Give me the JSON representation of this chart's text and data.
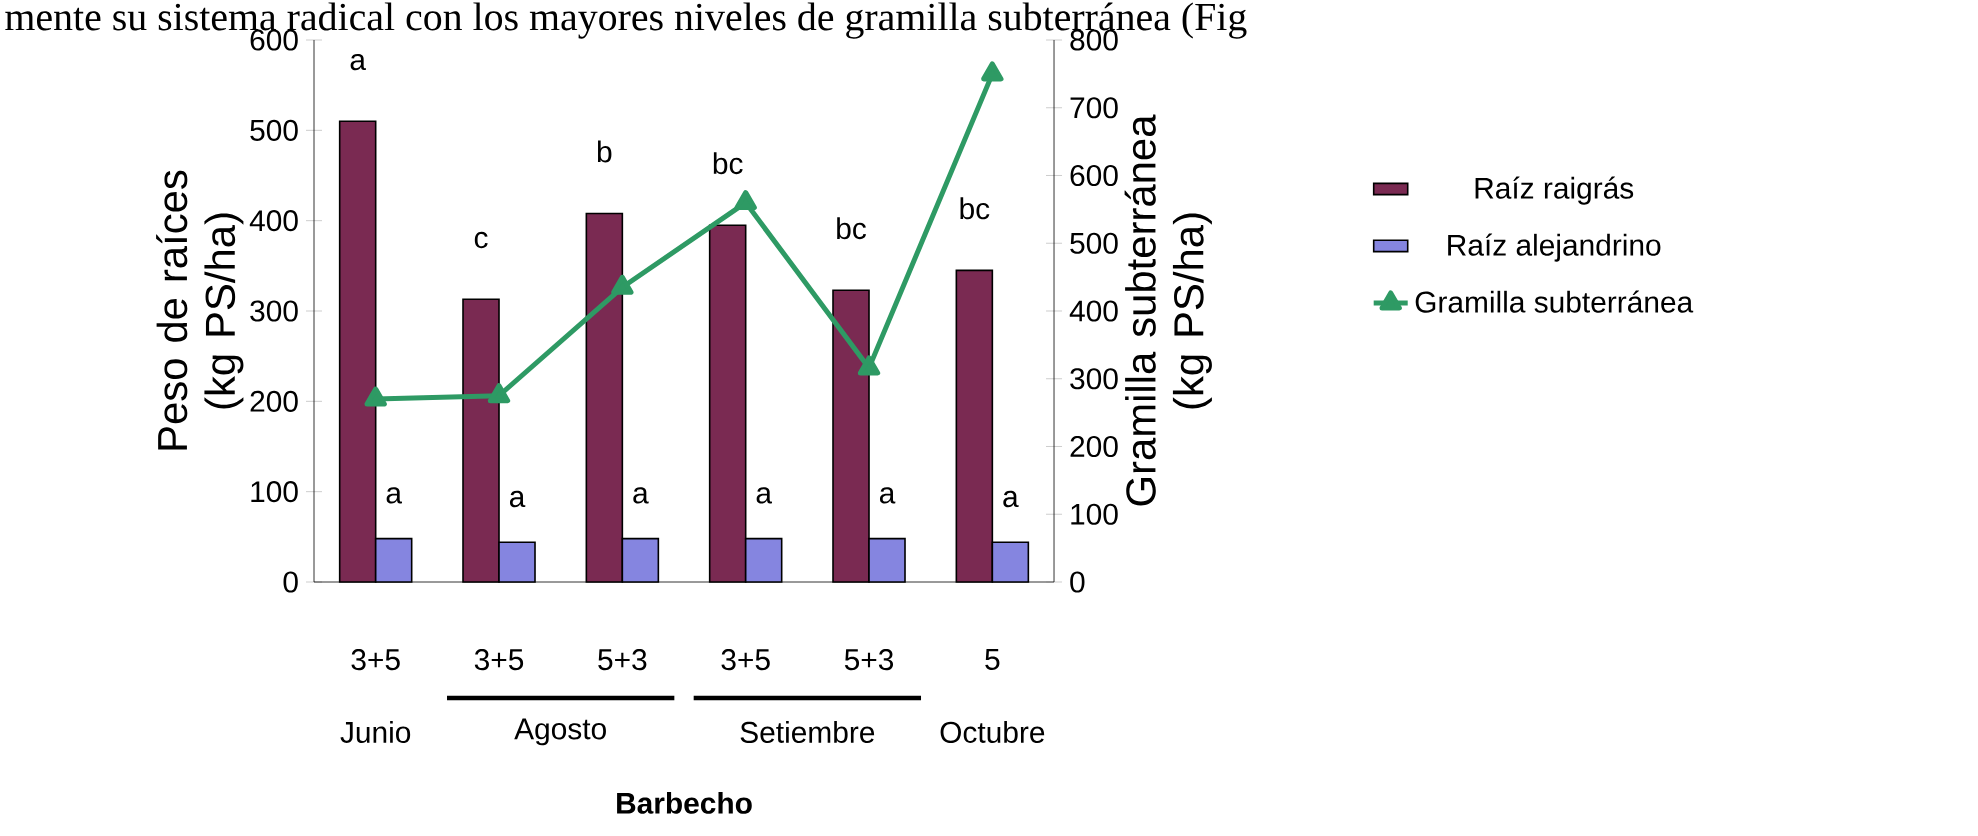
{
  "chart_data": {
    "type": "bar",
    "xlabel": "Barbecho",
    "ylabel": "Peso de raíces (kg PS/ha)",
    "y2label": "Gramilla subterránea (kg PS/ha)",
    "categories": [
      "3+5",
      "3+5",
      "5+3",
      "3+5",
      "5+3",
      "5"
    ],
    "series": [
      {
        "name": "Raíz raigrás",
        "color": "#7a2a52",
        "values": [
          510,
          313,
          408,
          395,
          323,
          345
        ],
        "value_labels": [
          "a",
          "c",
          "b",
          "bc",
          "bc",
          "bc"
        ]
      },
      {
        "name": "Raíz alejandrino",
        "color": "#8585e0",
        "values": [
          48,
          44,
          48,
          48,
          48,
          44
        ],
        "value_labels": [
          "a",
          "a",
          "a",
          "a",
          "a",
          "a"
        ]
      },
      {
        "name": "Gramilla subterránea",
        "type": "line",
        "axis": "y2",
        "color": "#2e9a64",
        "marker": "triangle",
        "values": [
          270,
          275,
          435,
          560,
          316,
          750
        ]
      }
    ],
    "ylim": [
      0,
      600
    ],
    "yticks": [
      0,
      100,
      200,
      300,
      400,
      500,
      600
    ],
    "y2lim": [
      0,
      800
    ],
    "y2ticks": [
      0,
      100,
      200,
      300,
      400,
      500,
      600,
      700,
      800
    ],
    "legend": "right",
    "annotations": [
      "mente su sistema radical con los mayores niveles de gramilla subterránea (Fig",
      "Junio",
      "Agosto",
      "Setiembre",
      "Octubre"
    ]
  }
}
